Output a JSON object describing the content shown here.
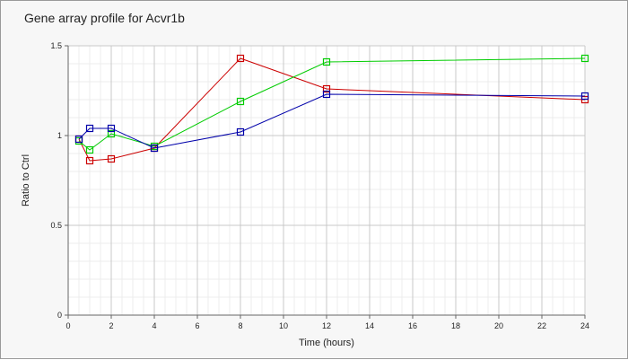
{
  "chart_data": {
    "type": "line",
    "title": "Gene array profile for Acvr1b",
    "xlabel": "Time (hours)",
    "ylabel": "Ratio to Ctrl",
    "xlim": [
      0,
      24
    ],
    "ylim": [
      0,
      1.5
    ],
    "x_ticks": [
      0,
      2,
      4,
      6,
      8,
      10,
      12,
      14,
      16,
      18,
      20,
      22,
      24
    ],
    "y_ticks": [
      0,
      0.5,
      1,
      1.5
    ],
    "x_tick_labels": [
      "0",
      "2",
      "4",
      "6",
      "8",
      "10",
      "12",
      "14",
      "16",
      "18",
      "20",
      "22",
      "24"
    ],
    "y_tick_labels": [
      "0",
      "0.5",
      "1",
      "1.5"
    ],
    "grid": true,
    "minor_grid": true,
    "legend": "none",
    "marker": "square",
    "series": [
      {
        "color": "#cc0000",
        "x": [
          0.5,
          1,
          2,
          4,
          8,
          12,
          24
        ],
        "y": [
          0.98,
          0.86,
          0.87,
          0.93,
          1.43,
          1.26,
          1.2
        ]
      },
      {
        "color": "#00cc00",
        "x": [
          0.5,
          1,
          2,
          4,
          8,
          12,
          24
        ],
        "y": [
          0.97,
          0.92,
          1.01,
          0.94,
          1.19,
          1.41,
          1.43
        ]
      },
      {
        "color": "#0000aa",
        "x": [
          0.5,
          1,
          2,
          4,
          8,
          12,
          24
        ],
        "y": [
          0.98,
          1.04,
          1.04,
          0.93,
          1.02,
          1.23,
          1.22
        ]
      }
    ]
  }
}
